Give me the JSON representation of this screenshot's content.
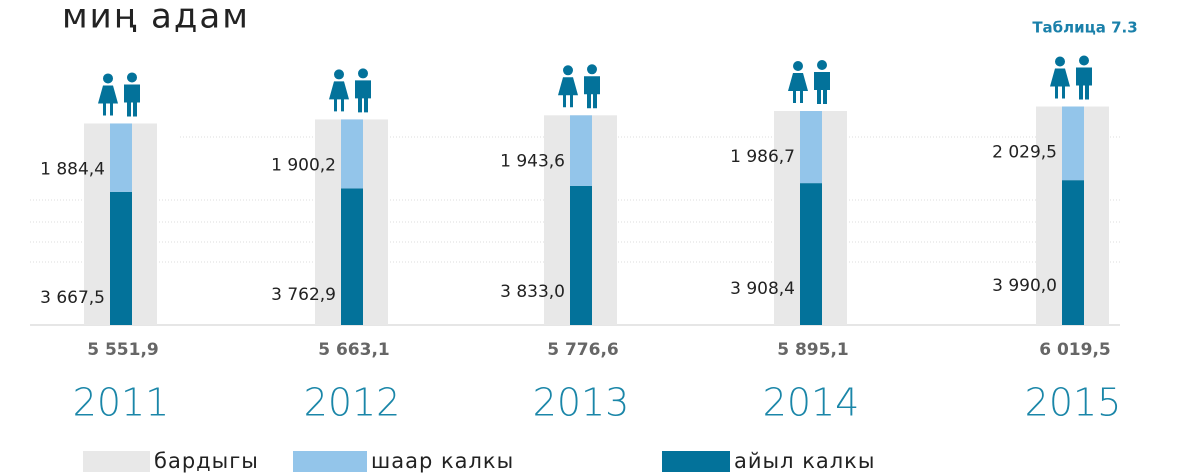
{
  "chart_data": {
    "type": "bar",
    "title": "миң адам",
    "subtitle": "Таблица 7.3",
    "categories": [
      "2011",
      "2012",
      "2013",
      "2014",
      "2015"
    ],
    "series": [
      {
        "name": "бардыгы",
        "color": "#e8e8e8",
        "values": [
          5551.9,
          5663.1,
          5776.6,
          5895.1,
          6019.5
        ],
        "value_labels": [
          "5 551,9",
          "5 663,1",
          "5 776,6",
          "5 895,1",
          "6 019,5"
        ]
      },
      {
        "name": "шаар калкы",
        "color": "#93c5ea",
        "values": [
          1884.4,
          1900.2,
          1943.6,
          1986.7,
          2029.5
        ],
        "value_labels": [
          "1 884,4",
          "1 900,2",
          "1 943,6",
          "1 986,7",
          "2 029,5"
        ]
      },
      {
        "name": "айыл калкы",
        "color": "#03729a",
        "values": [
          3667.5,
          3762.9,
          3833.0,
          3908.4,
          3990.0
        ],
        "value_labels": [
          "3 667,5",
          "3 762,9",
          "3 833,0",
          "3 908,4",
          "3 990,0"
        ]
      }
    ]
  }
}
